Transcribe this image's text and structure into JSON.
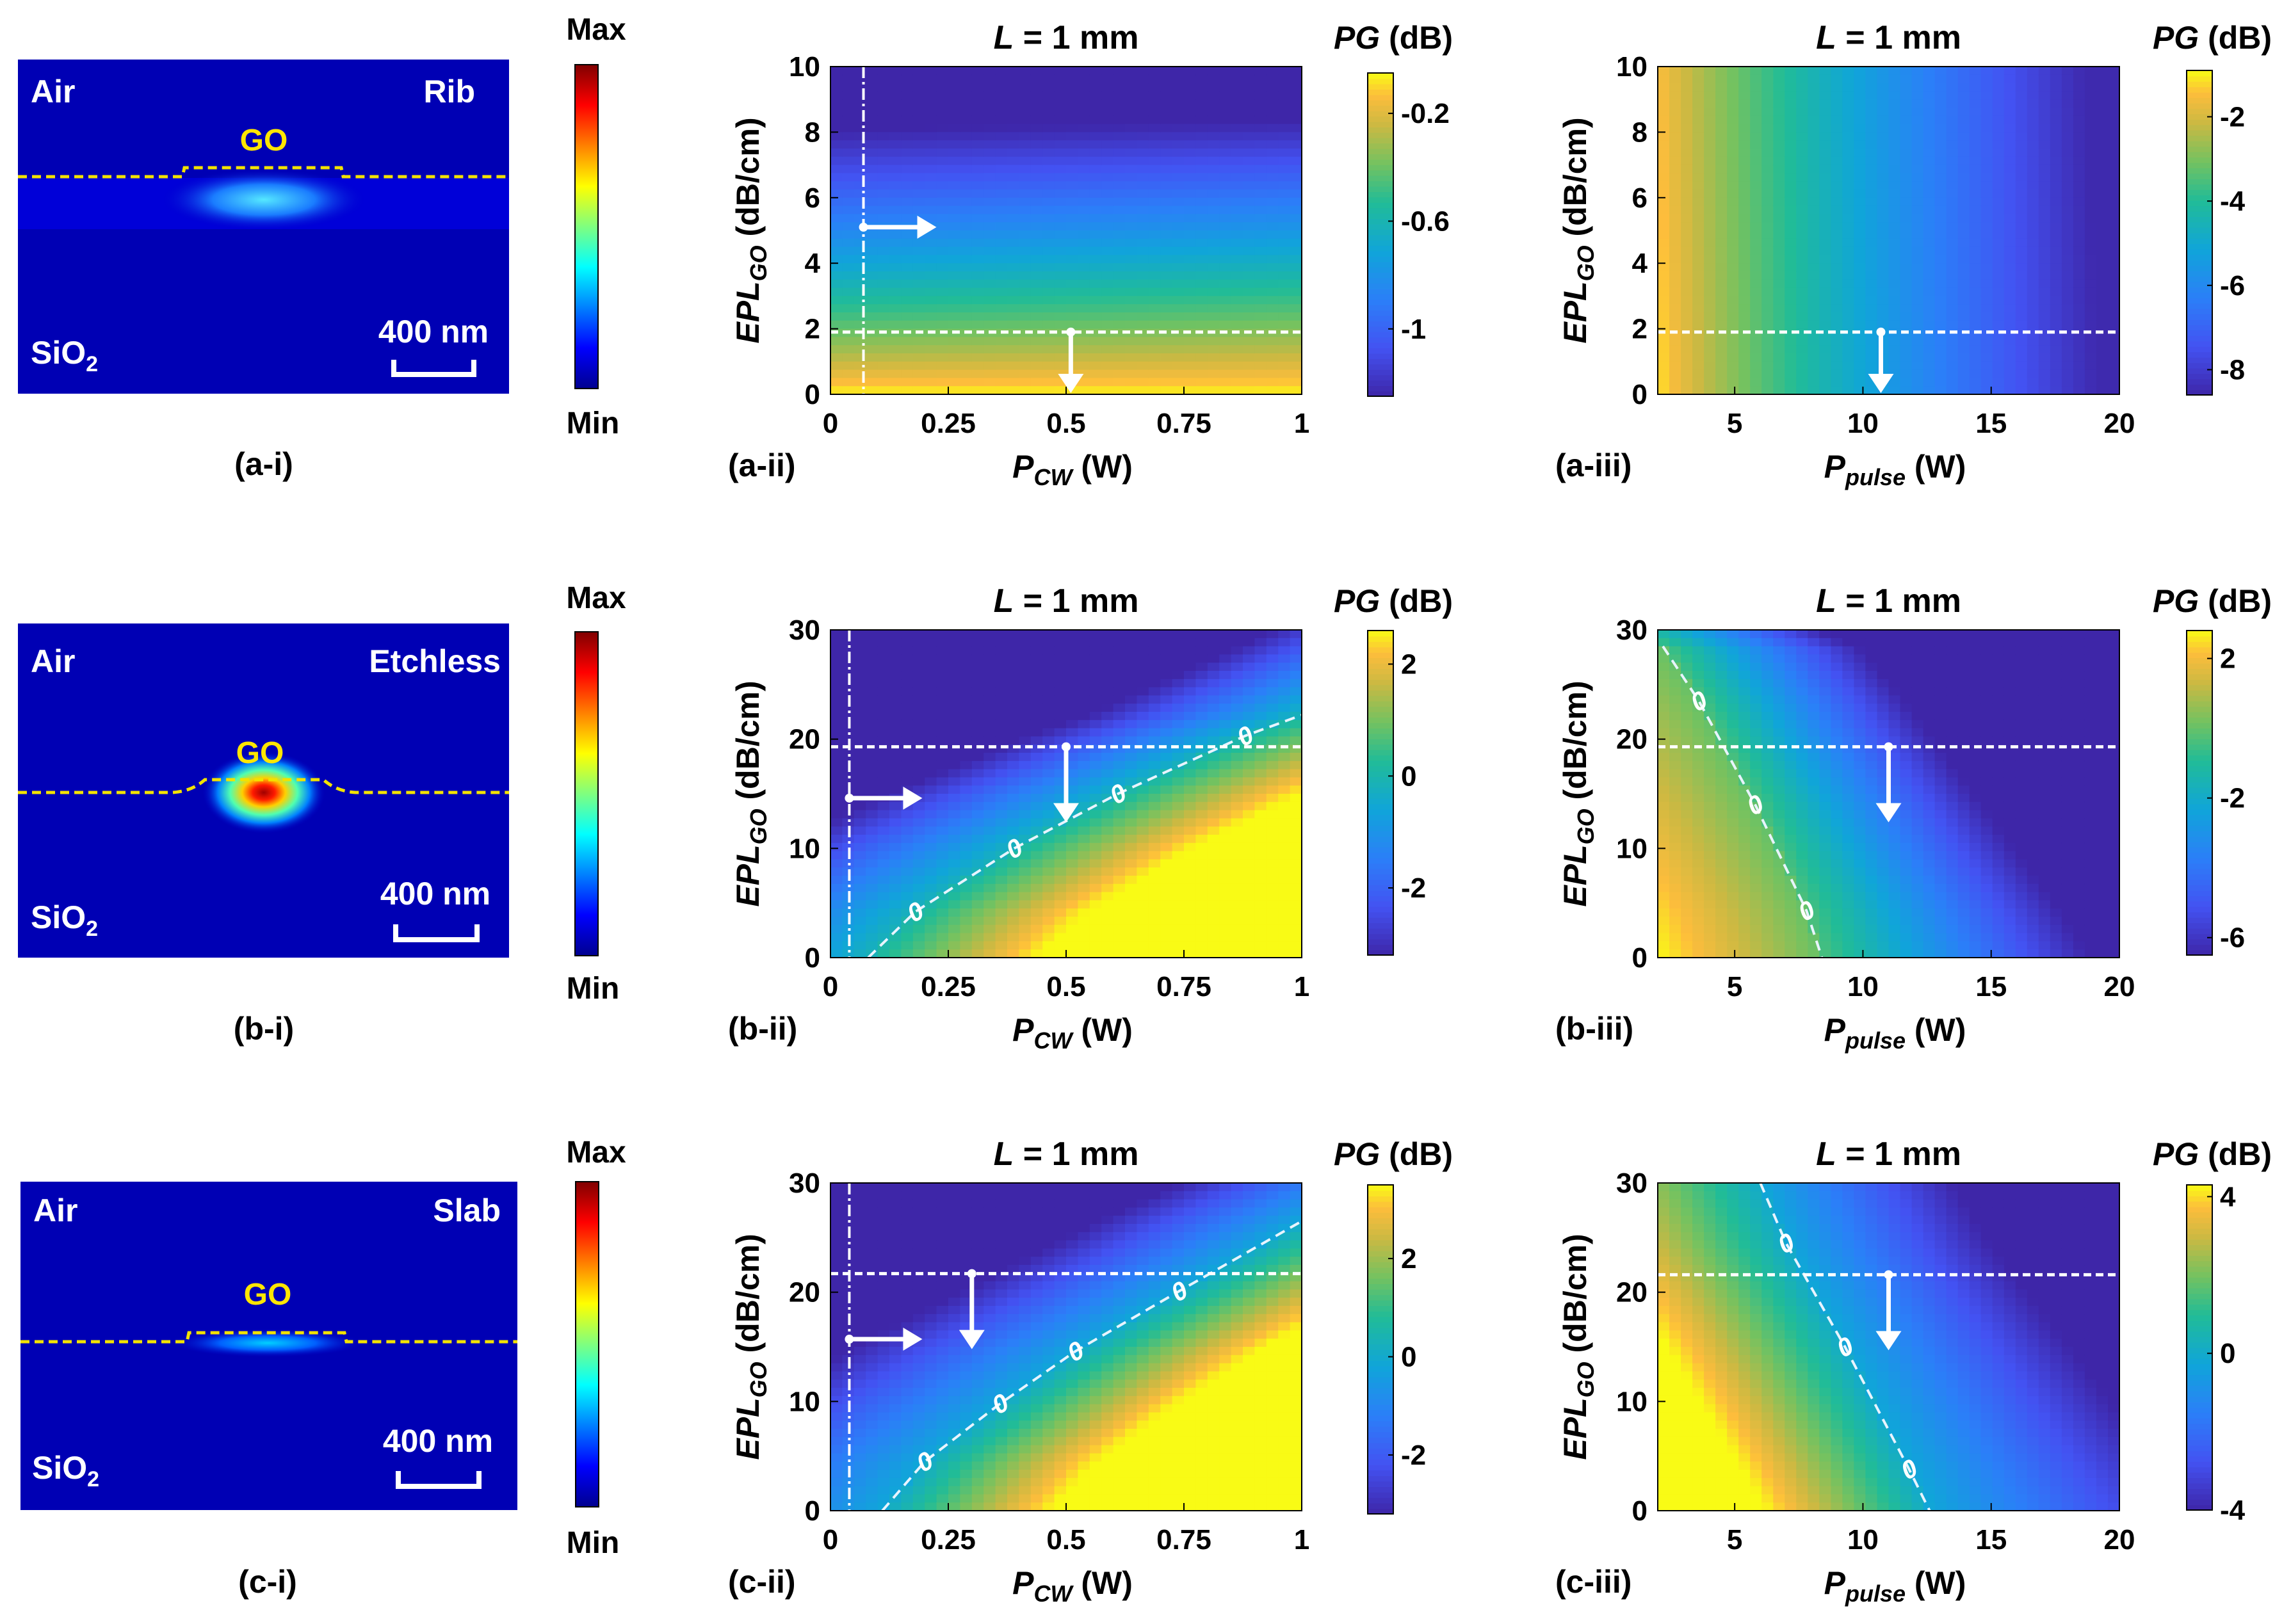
{
  "mode_panels": [
    {
      "id": "a-i",
      "label": "(a-i)",
      "air": "Air",
      "type_label": "Rib",
      "go": "GO",
      "sio2": "SiO",
      "sio2_sub": "2",
      "scale": "400 nm",
      "cbar_max": "Max",
      "cbar_min": "Min"
    },
    {
      "id": "b-i",
      "label": "(b-i)",
      "air": "Air",
      "type_label": "Etchless",
      "go": "GO",
      "sio2": "SiO",
      "sio2_sub": "2",
      "scale": "400 nm",
      "cbar_max": "Max",
      "cbar_min": "Min"
    },
    {
      "id": "c-i",
      "label": "(c-i)",
      "air": "Air",
      "type_label": "Slab",
      "go": "GO",
      "sio2": "SiO",
      "sio2_sub": "2",
      "scale": "400 nm",
      "cbar_max": "Max",
      "cbar_min": "Min"
    }
  ],
  "chart_data": [
    {
      "id": "a-ii",
      "panel_label": "(a-ii)",
      "type": "heatmap",
      "title": "L = 1 mm",
      "title_italic": "L",
      "title_rest": " = 1 mm",
      "xlabel_main": "P",
      "xlabel_sub": "CW",
      "xlabel_unit": " (W)",
      "ylabel_main": "EPL",
      "ylabel_sub": "GO",
      "ylabel_unit": " (dB/cm)",
      "xlim": [
        0,
        1
      ],
      "ylim": [
        0,
        10
      ],
      "xticks": [
        0,
        0.25,
        0.5,
        0.75,
        1
      ],
      "xtick_labels": [
        "0",
        "0.25",
        "0.5",
        "0.75",
        "1"
      ],
      "yticks": [
        0,
        2,
        4,
        6,
        8,
        10
      ],
      "ytick_labels": [
        "0",
        "2",
        "4",
        "6",
        "8",
        "10"
      ],
      "colorbar": {
        "label_italic": "PG",
        "label_rest": " (dB)",
        "range": [
          -1.25,
          -0.05
        ],
        "ticks": [
          -1,
          -0.6,
          -0.2
        ],
        "tick_labels": [
          "-1",
          "-0.6",
          "-0.2"
        ]
      },
      "field": {
        "kind": "y_dominant",
        "top_value": -1.25,
        "bottom_value": -0.05,
        "curve": 1.2
      },
      "hline_y": 1.9,
      "vline_x": 0.07,
      "arrow_right_at": [
        0.07,
        5.1
      ],
      "arrow_down_x": 0.51,
      "zero_contour": []
    },
    {
      "id": "a-iii",
      "panel_label": "(a-iii)",
      "type": "heatmap",
      "title": "L = 1 mm",
      "title_italic": "L",
      "title_rest": " = 1 mm",
      "xlabel_main": "P",
      "xlabel_sub": "pulse",
      "xlabel_unit": " (W)",
      "ylabel_main": "EPL",
      "ylabel_sub": "GO",
      "ylabel_unit": " (dB/cm)",
      "xlim": [
        2,
        20
      ],
      "ylim": [
        0,
        10
      ],
      "xticks": [
        5,
        10,
        15,
        20
      ],
      "xtick_labels": [
        "5",
        "10",
        "15",
        "20"
      ],
      "yticks": [
        0,
        2,
        4,
        6,
        8,
        10
      ],
      "ytick_labels": [
        "0",
        "2",
        "4",
        "6",
        "8",
        "10"
      ],
      "colorbar": {
        "label_italic": "PG",
        "label_rest": " (dB)",
        "range": [
          -8.6,
          -0.9
        ],
        "ticks": [
          -8,
          -6,
          -4,
          -2
        ],
        "tick_labels": [
          "-8",
          "-6",
          "-4",
          "-2"
        ]
      },
      "field": {
        "kind": "x_dominant",
        "left_value": -1.0,
        "right_value": -8.5
      },
      "hline_y": 1.9,
      "vline_x": null,
      "arrow_right_at": null,
      "arrow_down_x": 10.7,
      "zero_contour": []
    },
    {
      "id": "b-ii",
      "panel_label": "(b-ii)",
      "type": "heatmap",
      "title": "L = 1 mm",
      "title_italic": "L",
      "title_rest": " = 1 mm",
      "xlabel_main": "P",
      "xlabel_sub": "CW",
      "xlabel_unit": " (W)",
      "ylabel_main": "EPL",
      "ylabel_sub": "GO",
      "ylabel_unit": " (dB/cm)",
      "xlim": [
        0,
        1
      ],
      "ylim": [
        0,
        30
      ],
      "xticks": [
        0,
        0.25,
        0.5,
        0.75,
        1
      ],
      "xtick_labels": [
        "0",
        "0.25",
        "0.5",
        "0.75",
        "1"
      ],
      "yticks": [
        0,
        10,
        20,
        30
      ],
      "ytick_labels": [
        "0",
        "10",
        "20",
        "30"
      ],
      "colorbar": {
        "label_italic": "PG",
        "label_rest": " (dB)",
        "range": [
          -3.2,
          2.6
        ],
        "ticks": [
          -2,
          0,
          2
        ],
        "tick_labels": [
          "-2",
          "0",
          "2"
        ]
      },
      "field": {
        "kind": "contour",
        "min_value": -3.2,
        "max_value": 2.6
      },
      "hline_y": 19.3,
      "vline_x": 0.04,
      "arrow_right_at": [
        0.04,
        14.6
      ],
      "arrow_down_x": 0.5,
      "zero_contour": [
        [
          0.08,
          0
        ],
        [
          0.18,
          4.2
        ],
        [
          0.39,
          10.0
        ],
        [
          0.61,
          15.0
        ],
        [
          0.88,
          20.3
        ],
        [
          1.0,
          22.2
        ]
      ],
      "contour_labels": [
        [
          0.18,
          4.2
        ],
        [
          0.39,
          10.0
        ],
        [
          0.61,
          15.0
        ],
        [
          0.88,
          20.3
        ]
      ],
      "contour_text": "0"
    },
    {
      "id": "b-iii",
      "panel_label": "(b-iii)",
      "type": "heatmap",
      "title": "L = 1 mm",
      "title_italic": "L",
      "title_rest": " = 1 mm",
      "xlabel_main": "P",
      "xlabel_sub": "pulse",
      "xlabel_unit": " (W)",
      "ylabel_main": "EPL",
      "ylabel_sub": "GO",
      "ylabel_unit": " (dB/cm)",
      "xlim": [
        2,
        20
      ],
      "ylim": [
        0,
        30
      ],
      "xticks": [
        5,
        10,
        15,
        20
      ],
      "xtick_labels": [
        "5",
        "10",
        "15",
        "20"
      ],
      "yticks": [
        0,
        10,
        20,
        30
      ],
      "ytick_labels": [
        "0",
        "10",
        "20",
        "30"
      ],
      "colorbar": {
        "label_italic": "PG",
        "label_rest": " (dB)",
        "range": [
          -6.5,
          2.8
        ],
        "ticks": [
          -6,
          -2,
          2
        ],
        "tick_labels": [
          "-6",
          "-2",
          "2"
        ]
      },
      "field": {
        "kind": "contour",
        "min_value": -6.5,
        "max_value": 2.8
      },
      "hline_y": 19.3,
      "vline_x": null,
      "arrow_right_at": null,
      "arrow_down_x": 11.0,
      "zero_contour": [
        [
          2.2,
          28.5
        ],
        [
          3.6,
          23.5
        ],
        [
          5.8,
          14.0
        ],
        [
          7.8,
          4.3
        ],
        [
          8.4,
          0
        ]
      ],
      "contour_labels": [
        [
          3.6,
          23.5
        ],
        [
          5.8,
          14.0
        ],
        [
          7.8,
          4.3
        ]
      ],
      "contour_text": "0"
    },
    {
      "id": "c-ii",
      "panel_label": "(c-ii)",
      "type": "heatmap",
      "title": "L = 1 mm",
      "title_italic": "L",
      "title_rest": " = 1 mm",
      "xlabel_main": "P",
      "xlabel_sub": "CW",
      "xlabel_unit": " (W)",
      "ylabel_main": "EPL",
      "ylabel_sub": "GO",
      "ylabel_unit": " (dB/cm)",
      "xlim": [
        0,
        1
      ],
      "ylim": [
        0,
        30
      ],
      "xticks": [
        0,
        0.25,
        0.5,
        0.75,
        1
      ],
      "xtick_labels": [
        "0",
        "0.25",
        "0.5",
        "0.75",
        "1"
      ],
      "yticks": [
        0,
        10,
        20,
        30
      ],
      "ytick_labels": [
        "0",
        "10",
        "20",
        "30"
      ],
      "colorbar": {
        "label_italic": "PG",
        "label_rest": " (dB)",
        "range": [
          -3.2,
          3.5
        ],
        "ticks": [
          -2,
          0,
          2
        ],
        "tick_labels": [
          "-2",
          "0",
          "2"
        ]
      },
      "field": {
        "kind": "contour",
        "min_value": -3.2,
        "max_value": 3.5
      },
      "hline_y": 21.7,
      "vline_x": 0.04,
      "arrow_right_at": [
        0.04,
        15.7
      ],
      "arrow_down_x": 0.3,
      "zero_contour": [
        [
          0.11,
          0
        ],
        [
          0.2,
          4.5
        ],
        [
          0.36,
          9.8
        ],
        [
          0.52,
          14.6
        ],
        [
          0.74,
          20.1
        ],
        [
          1.0,
          26.5
        ]
      ],
      "contour_labels": [
        [
          0.2,
          4.5
        ],
        [
          0.36,
          9.8
        ],
        [
          0.52,
          14.6
        ],
        [
          0.74,
          20.1
        ]
      ],
      "contour_text": "0"
    },
    {
      "id": "c-iii",
      "panel_label": "(c-iii)",
      "type": "heatmap",
      "title": "L = 1 mm",
      "title_italic": "L",
      "title_rest": " = 1 mm",
      "xlabel_main": "P",
      "xlabel_sub": "pulse",
      "xlabel_unit": " (W)",
      "ylabel_main": "EPL",
      "ylabel_sub": "GO",
      "ylabel_unit": " (dB/cm)",
      "xlim": [
        2,
        20
      ],
      "ylim": [
        0,
        30
      ],
      "xticks": [
        5,
        10,
        15,
        20
      ],
      "xtick_labels": [
        "5",
        "10",
        "15",
        "20"
      ],
      "yticks": [
        0,
        10,
        20,
        30
      ],
      "ytick_labels": [
        "0",
        "10",
        "20",
        "30"
      ],
      "colorbar": {
        "label_italic": "PG",
        "label_rest": " (dB)",
        "range": [
          -4.0,
          4.3
        ],
        "ticks": [
          -4,
          0,
          4
        ],
        "tick_labels": [
          "-4",
          "0",
          "4"
        ]
      },
      "field": {
        "kind": "contour",
        "min_value": -4.0,
        "max_value": 4.3
      },
      "hline_y": 21.6,
      "vline_x": null,
      "arrow_right_at": null,
      "arrow_down_x": 11.0,
      "zero_contour": [
        [
          6.0,
          30
        ],
        [
          7.0,
          24.5
        ],
        [
          9.3,
          15.0
        ],
        [
          11.8,
          3.8
        ],
        [
          12.6,
          0
        ]
      ],
      "contour_labels": [
        [
          7.0,
          24.5
        ],
        [
          9.3,
          15.0
        ],
        [
          11.8,
          3.8
        ]
      ],
      "contour_text": "0"
    }
  ],
  "colors": {
    "frame": "#000000",
    "guide_line": "#ffffff",
    "interface_line": "#f2e200",
    "go_label": "#ffe600",
    "mode_bg": "#0000b4"
  }
}
